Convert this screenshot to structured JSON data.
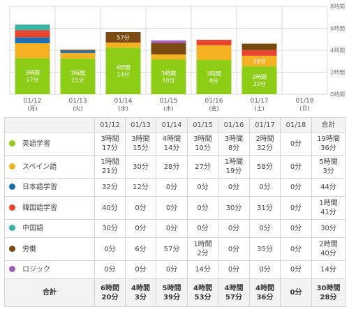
{
  "chart_data": {
    "type": "bar",
    "stacked": true,
    "categories": [
      "01/12",
      "01/13",
      "01/14",
      "01/15",
      "01/16",
      "01/17",
      "01/18"
    ],
    "category_days": [
      "(月)",
      "(火)",
      "(水)",
      "(木)",
      "(金)",
      "(土)",
      "(日)"
    ],
    "y_ticks": [
      "0時間",
      "2時間",
      "4時間",
      "6時間",
      "8時間"
    ],
    "ylim": [
      0,
      480
    ],
    "series": [
      {
        "name": "英語学習",
        "color": "#8dcd18",
        "values": [
          197,
          195,
          254,
          190,
          188,
          152,
          0
        ]
      },
      {
        "name": "スペイン語",
        "color": "#f4b122",
        "values": [
          81,
          30,
          28,
          27,
          79,
          58,
          0
        ]
      },
      {
        "name": "日本語学習",
        "color": "#1f6fb0",
        "values": [
          32,
          12,
          0,
          0,
          0,
          0,
          0
        ]
      },
      {
        "name": "韓国語学習",
        "color": "#e6452f",
        "values": [
          40,
          0,
          0,
          0,
          30,
          31,
          0
        ]
      },
      {
        "name": "中国語",
        "color": "#3ab49f",
        "values": [
          30,
          0,
          0,
          0,
          0,
          0,
          0
        ]
      },
      {
        "name": "労働",
        "color": "#7a4a10",
        "values": [
          0,
          6,
          57,
          62,
          0,
          35,
          0
        ]
      },
      {
        "name": "ロジック",
        "color": "#a45bb6",
        "values": [
          0,
          0,
          0,
          14,
          0,
          0,
          0
        ]
      }
    ],
    "bar_labels": [
      {
        "category": 0,
        "series": 0,
        "lines": [
          "3時間",
          "17分"
        ]
      },
      {
        "category": 1,
        "series": 0,
        "lines": [
          "3時間",
          "15分"
        ]
      },
      {
        "category": 2,
        "series": 0,
        "lines": [
          "4時間",
          "14分"
        ]
      },
      {
        "category": 2,
        "series": 5,
        "lines": [
          "57分"
        ]
      },
      {
        "category": 3,
        "series": 0,
        "lines": [
          "3時間",
          "10分"
        ]
      },
      {
        "category": 4,
        "series": 0,
        "lines": [
          "3時間",
          "8分"
        ]
      },
      {
        "category": 5,
        "series": 0,
        "lines": [
          "2時間",
          "32分"
        ]
      },
      {
        "category": 5,
        "series": 1,
        "lines": [
          "58分"
        ]
      }
    ]
  },
  "table": {
    "headers": [
      "01/12",
      "01/13",
      "01/14",
      "01/15",
      "01/16",
      "01/17",
      "01/18",
      "合計"
    ],
    "rows": [
      {
        "name": "英語学習",
        "color": "#8dcd18",
        "cells": [
          "3時間\n17分",
          "3時間\n15分",
          "4時間\n14分",
          "3時間\n10分",
          "3時間\n8分",
          "2時間\n32分",
          "0分",
          "19時間\n36分"
        ]
      },
      {
        "name": "スペイン語",
        "color": "#f4b122",
        "cells": [
          "1時間\n21分",
          "30分",
          "28分",
          "27分",
          "1時間\n19分",
          "58分",
          "0分",
          "5時間\n3分"
        ]
      },
      {
        "name": "日本語学習",
        "color": "#1f6fb0",
        "cells": [
          "32分",
          "12分",
          "0分",
          "0分",
          "0分",
          "0分",
          "0分",
          "44分"
        ]
      },
      {
        "name": "韓国語学習",
        "color": "#e6452f",
        "cells": [
          "40分",
          "0分",
          "0分",
          "0分",
          "30分",
          "31分",
          "0分",
          "1時間\n41分"
        ]
      },
      {
        "name": "中国語",
        "color": "#3ab49f",
        "cells": [
          "30分",
          "0分",
          "0分",
          "0分",
          "0分",
          "0分",
          "0分",
          "30分"
        ]
      },
      {
        "name": "労働",
        "color": "#7a4a10",
        "cells": [
          "0分",
          "6分",
          "57分",
          "1時間\n2分",
          "0分",
          "35分",
          "0分",
          "2時間\n40分"
        ]
      },
      {
        "name": "ロジック",
        "color": "#a45bb6",
        "cells": [
          "0分",
          "0分",
          "0分",
          "14分",
          "0分",
          "0分",
          "0分",
          "14分"
        ]
      }
    ],
    "footer": {
      "label": "合計",
      "cells": [
        "6時間\n20分",
        "4時間\n3分",
        "5時間\n39分",
        "4時間\n53分",
        "4時間\n57分",
        "4時間\n36分",
        "0分",
        "30時間\n28分"
      ]
    }
  }
}
